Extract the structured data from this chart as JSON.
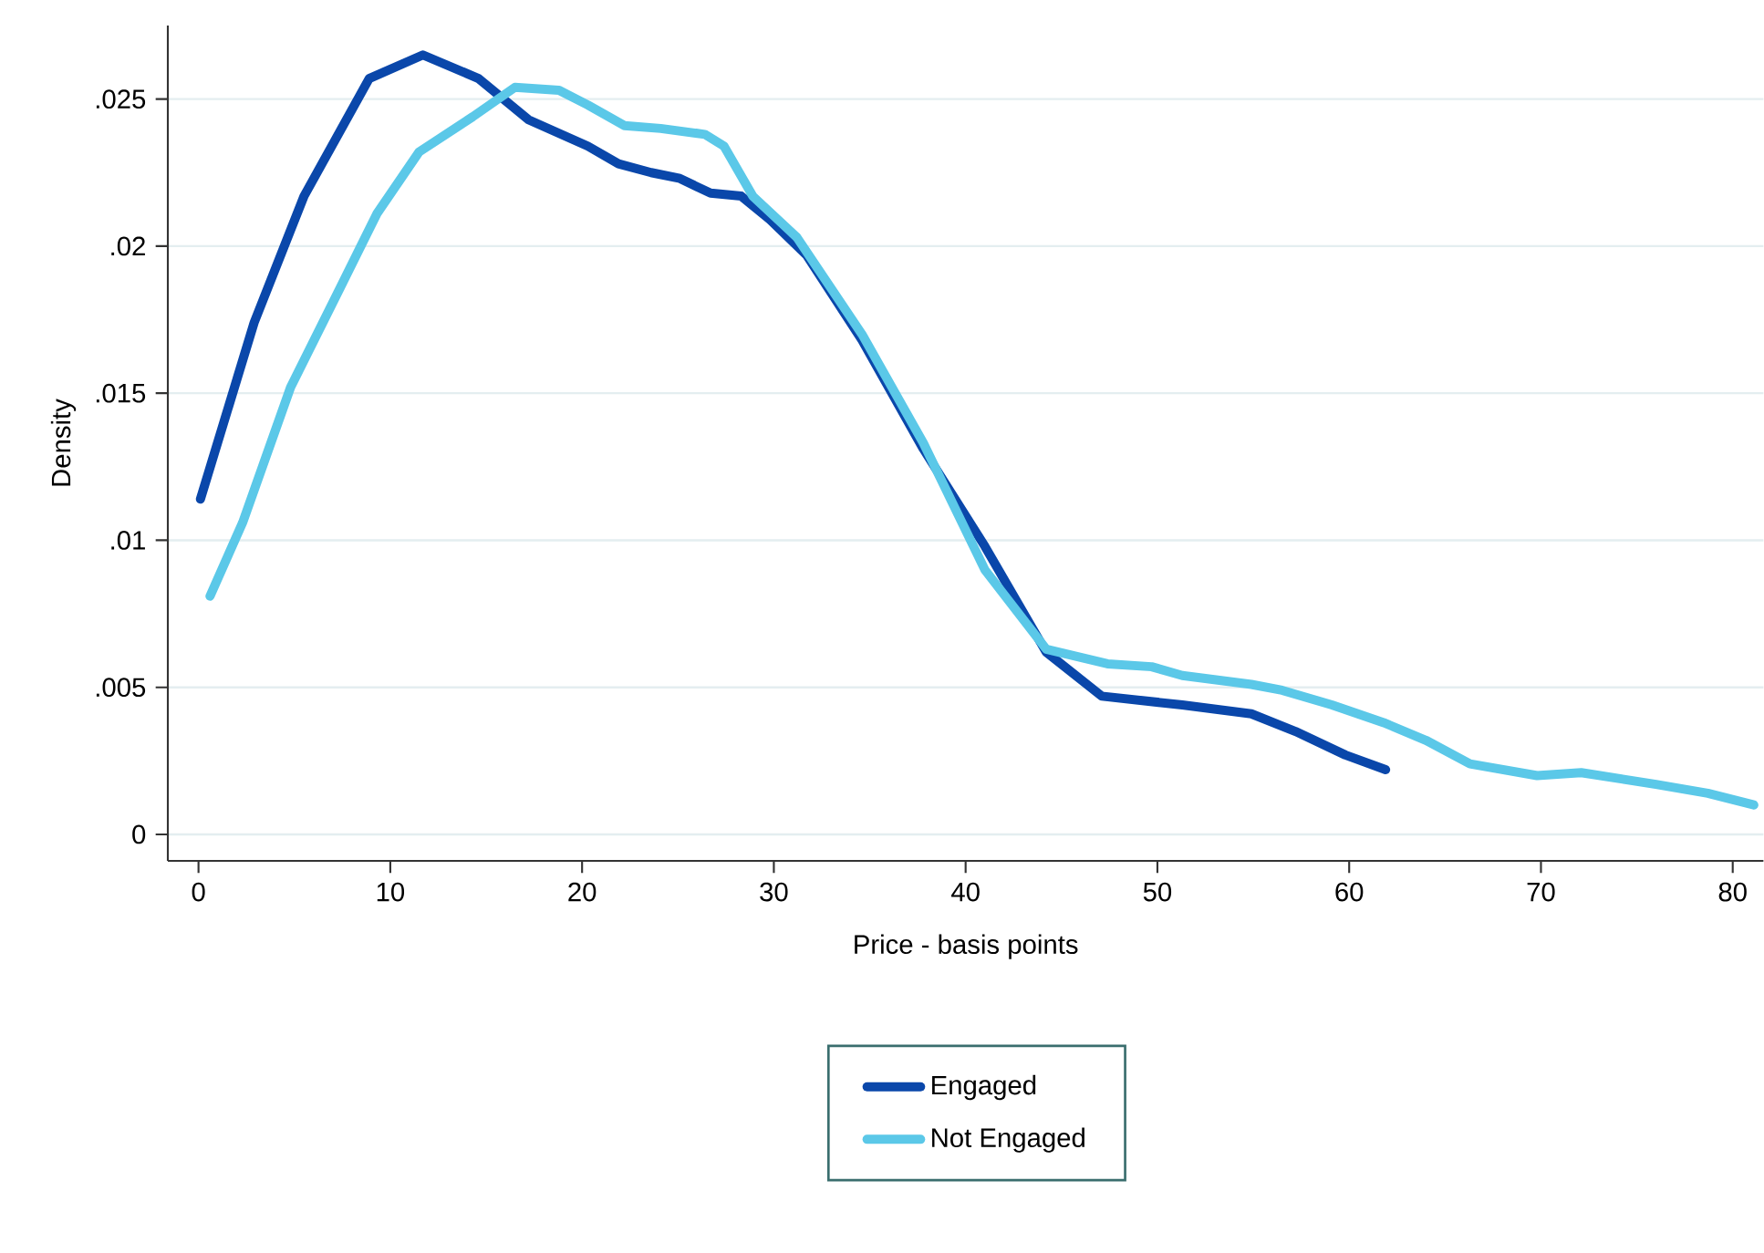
{
  "chart_data": {
    "type": "line",
    "xlabel": "Price - basis points",
    "ylabel": "Density",
    "xlim": [
      -1.6,
      81.6
    ],
    "ylim": [
      -0.0009,
      0.0275
    ],
    "xticks": [
      0,
      10,
      20,
      30,
      40,
      50,
      60,
      70,
      80
    ],
    "yticks": [
      0,
      {
        "value": 0.005,
        "label": ".005"
      },
      {
        "value": 0.01,
        "label": ".01"
      },
      {
        "value": 0.015,
        "label": ".015"
      },
      {
        "value": 0.02,
        "label": ".02"
      },
      {
        "value": 0.025,
        "label": ".025"
      }
    ],
    "grid": "y",
    "legend": "bottom",
    "line_style": "solid",
    "marker": "none",
    "series": [
      {
        "name": "Engaged",
        "color": "#0a47aa",
        "x": [
          0.1,
          2.9,
          5.5,
          8.9,
          11.7,
          14.6,
          17.2,
          20.3,
          21.9,
          23.6,
          25.1,
          26.7,
          28.3,
          29.8,
          31.7,
          34.6,
          37.8,
          41.0,
          44.2,
          47.1,
          51.3,
          54.9,
          57.2,
          59.8,
          61.9
        ],
        "values": [
          0.0114,
          0.0174,
          0.0217,
          0.0257,
          0.0265,
          0.0257,
          0.0243,
          0.0234,
          0.0228,
          0.0225,
          0.0223,
          0.0218,
          0.0217,
          0.0209,
          0.0197,
          0.0168,
          0.0131,
          0.0098,
          0.0062,
          0.0047,
          0.0044,
          0.0041,
          0.0035,
          0.0027,
          0.0022
        ]
      },
      {
        "name": "Not Engaged",
        "color": "#5bc8e8",
        "x": [
          0.6,
          2.3,
          4.8,
          7.4,
          9.3,
          11.5,
          14.3,
          16.5,
          18.8,
          20.3,
          22.2,
          24.1,
          26.4,
          27.4,
          28.9,
          31.2,
          34.6,
          37.8,
          41.0,
          44.2,
          47.4,
          49.7,
          51.3,
          54.9,
          56.5,
          59.1,
          61.8,
          64.0,
          66.3,
          69.8,
          72.1,
          76.0,
          78.7,
          81.1
        ],
        "values": [
          0.0081,
          0.0106,
          0.0152,
          0.0186,
          0.0211,
          0.0232,
          0.0244,
          0.0254,
          0.0253,
          0.0248,
          0.0241,
          0.024,
          0.0238,
          0.0234,
          0.0217,
          0.0203,
          0.017,
          0.0133,
          0.009,
          0.0063,
          0.0058,
          0.0057,
          0.0054,
          0.0051,
          0.0049,
          0.0044,
          0.0038,
          0.0032,
          0.0024,
          0.002,
          0.0021,
          0.0017,
          0.0014,
          0.001
        ]
      }
    ]
  }
}
